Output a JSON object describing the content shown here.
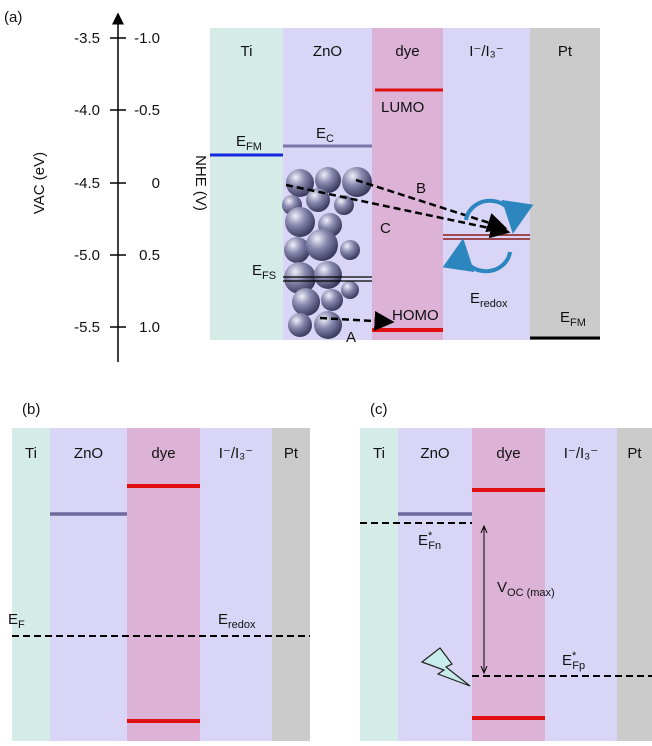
{
  "panel_a": {
    "label": "(a)",
    "vac_axis_title": "VAC (eV)",
    "nhe_axis_title": "NHE (V)",
    "vac_ticks": [
      "-3.5",
      "-4.0",
      "-4.5",
      "-5.0",
      "-5.5"
    ],
    "nhe_ticks": [
      "-1.0",
      "-0.5",
      "0",
      "0.5",
      "1.0"
    ],
    "columns": [
      "Ti",
      "ZnO",
      "dye",
      "I⁻/I₃⁻",
      "Pt"
    ],
    "levels": {
      "ti_fermi": {
        "main": "E",
        "sub": "FM"
      },
      "conduction": {
        "main": "E",
        "sub": "C"
      },
      "lumo": "LUMO",
      "zno_fermi": {
        "main": "E",
        "sub": "FS"
      },
      "homo": "HOMO",
      "redox": {
        "main": "E",
        "sub": "redox"
      },
      "pt_fermi": {
        "main": "E",
        "sub": "FM"
      }
    },
    "paths": [
      "A",
      "B",
      "C"
    ]
  },
  "panel_b": {
    "label": "(b)",
    "columns": [
      "Ti",
      "ZnO",
      "dye",
      "I⁻/I₃⁻",
      "Pt"
    ],
    "levels": {
      "fermi": {
        "main": "E",
        "sub": "F"
      },
      "redox": {
        "main": "E",
        "sub": "redox"
      }
    }
  },
  "panel_c": {
    "label": "(c)",
    "columns": [
      "Ti",
      "ZnO",
      "dye",
      "I⁻/I₃⁻",
      "Pt"
    ],
    "levels": {
      "electron_quasi_fermi": {
        "main": "E",
        "sup": "*",
        "sub": "Fn"
      },
      "voltage": {
        "main": "V",
        "sub": "OC (max)"
      },
      "hole_quasi_fermi": {
        "main": "E",
        "sup": "*",
        "sub": "Fp"
      }
    }
  }
}
